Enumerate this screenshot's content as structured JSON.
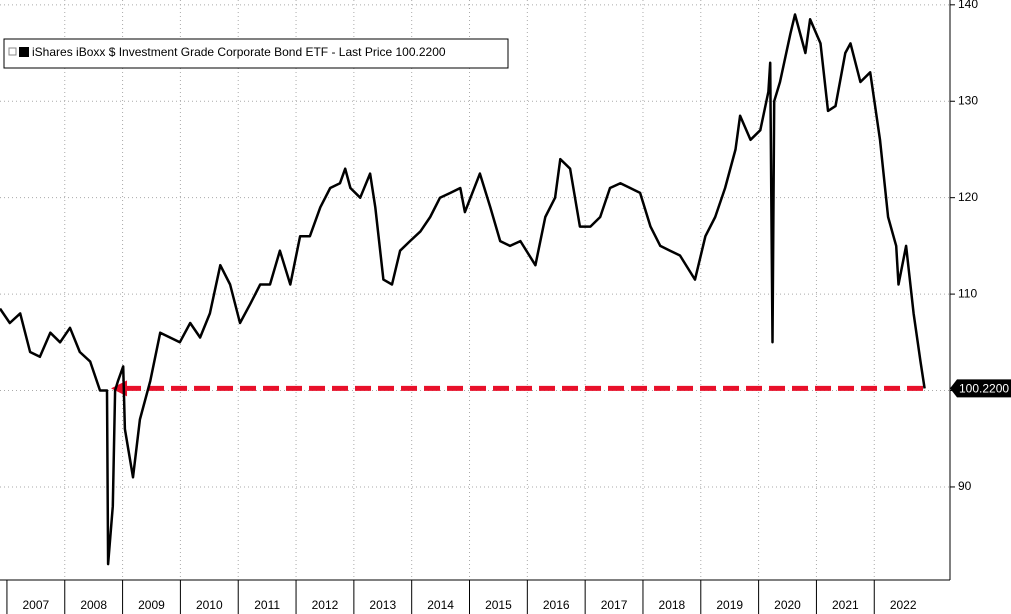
{
  "chart_data": {
    "type": "line",
    "series": [
      {
        "name": "iShares iBoxx $ Investment Grade Corporate Bond ETF - Last Price 100.2200",
        "color": "#000000",
        "x": [
          2006.88,
          2007.05,
          2007.23,
          2007.4,
          2007.57,
          2007.75,
          2007.92,
          2008.09,
          2008.26,
          2008.44,
          2008.61,
          2008.73,
          2008.75,
          2008.83,
          2008.87,
          2008.92,
          2009.01,
          2009.04,
          2009.18,
          2009.3,
          2009.48,
          2009.65,
          2009.82,
          2009.99,
          2010.17,
          2010.34,
          2010.51,
          2010.69,
          2010.86,
          2011.03,
          2011.21,
          2011.38,
          2011.55,
          2011.72,
          2011.9,
          2012.07,
          2012.24,
          2012.42,
          2012.59,
          2012.76,
          2012.85,
          2012.94,
          2013.11,
          2013.28,
          2013.37,
          2013.51,
          2013.66,
          2013.8,
          2013.97,
          2014.15,
          2014.32,
          2014.49,
          2014.67,
          2014.84,
          2014.92,
          2015.18,
          2015.36,
          2015.53,
          2015.7,
          2015.88,
          2016.14,
          2016.31,
          2016.48,
          2016.57,
          2016.74,
          2016.91,
          2017.09,
          2017.26,
          2017.43,
          2017.61,
          2017.78,
          2017.95,
          2018.13,
          2018.3,
          2018.47,
          2018.64,
          2018.9,
          2019.08,
          2019.25,
          2019.42,
          2019.6,
          2019.68,
          2019.86,
          2020.03,
          2020.17,
          2020.2,
          2020.24,
          2020.27,
          2020.37,
          2020.55,
          2020.63,
          2020.81,
          2020.89,
          2021.07,
          2021.2,
          2021.33,
          2021.5,
          2021.59,
          2021.76,
          2021.93,
          2022.1,
          2022.24,
          2022.38,
          2022.42,
          2022.55,
          2022.68,
          2022.8,
          2022.87
        ],
        "values": [
          108.5,
          107,
          108,
          104,
          103.5,
          106,
          105,
          106.5,
          104,
          103,
          100,
          100,
          82,
          88,
          100,
          101,
          102.5,
          96,
          91,
          97,
          101,
          106,
          105.5,
          105,
          107,
          105.5,
          108,
          113,
          111,
          107,
          109,
          111,
          111,
          114.5,
          111,
          116,
          116,
          119,
          121,
          121.5,
          123,
          121,
          120,
          122.5,
          119,
          111.5,
          111,
          114.5,
          115.5,
          116.5,
          118,
          120,
          120.5,
          121,
          118.5,
          122.5,
          119,
          115.5,
          115,
          115.5,
          113,
          118,
          120,
          124,
          123,
          117,
          117,
          118,
          121,
          121.5,
          121,
          120.5,
          117,
          115,
          114.5,
          114,
          111.5,
          116,
          118,
          121,
          125,
          128.5,
          126,
          127,
          131,
          134,
          105,
          130,
          132,
          137,
          139,
          135,
          138.5,
          136,
          129,
          129.5,
          135,
          136,
          132,
          133,
          126,
          118,
          115,
          111,
          115,
          108,
          103,
          100.22
        ]
      }
    ],
    "xlim": [
      2006.88,
      2023.31
    ],
    "xticks": [
      2007,
      2008,
      2009,
      2010,
      2011,
      2012,
      2013,
      2014,
      2015,
      2016,
      2017,
      2018,
      2019,
      2020,
      2021,
      2022
    ],
    "ylim": [
      80.35,
      140.5
    ],
    "yticks": [
      90,
      100,
      110,
      120,
      130,
      140
    ],
    "ytick_labels_shown": [
      {
        "value": 90,
        "label": "90"
      },
      {
        "value": 110,
        "label": "110"
      },
      {
        "value": 120,
        "label": "120"
      },
      {
        "value": 130,
        "label": "130"
      },
      {
        "value": 140,
        "label": "140"
      }
    ],
    "grid": true,
    "last_value": 100.22,
    "last_value_label": "100.2200",
    "reference_line": {
      "value": 100.22,
      "xmin": 2008.8,
      "color": "#e8102a"
    }
  }
}
